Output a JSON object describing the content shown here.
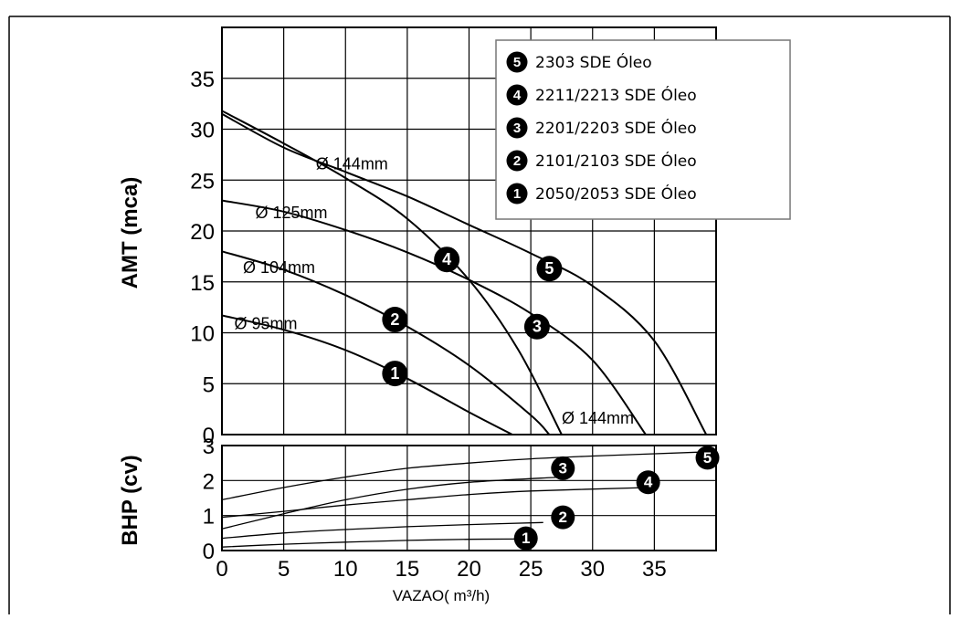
{
  "chart_data": [
    {
      "type": "line",
      "id": "head",
      "ylabel": "AMT (mca)",
      "xlim": [
        0,
        40
      ],
      "ylim": [
        0,
        40
      ],
      "yticks": [
        0,
        5,
        10,
        15,
        20,
        25,
        30,
        35
      ],
      "grid": true,
      "legend_position": "top-right",
      "legend": [
        {
          "marker": "5",
          "label": "2303 SDE Óleo"
        },
        {
          "marker": "4",
          "label": "2211/2213 SDE Óleo"
        },
        {
          "marker": "3",
          "label": "2201/2203 SDE Óleo"
        },
        {
          "marker": "2",
          "label": "2101/2103 SDE Óleo"
        },
        {
          "marker": "1",
          "label": "2050/2053 SDE Óleo"
        }
      ],
      "series": [
        {
          "marker": "1",
          "x": [
            0,
            5,
            10,
            15,
            20,
            23.5
          ],
          "y": [
            11.7,
            10.3,
            8.3,
            5.5,
            2.2,
            0
          ]
        },
        {
          "marker": "2",
          "x": [
            0,
            5,
            10,
            15,
            20,
            25,
            26.5
          ],
          "y": [
            18,
            16.2,
            13.7,
            10.6,
            6.8,
            1.9,
            0
          ]
        },
        {
          "marker": "3",
          "x": [
            0,
            5,
            10,
            15,
            20,
            25,
            30,
            34.3
          ],
          "y": [
            23,
            21.9,
            20.1,
            17.9,
            15.2,
            11.9,
            7.3,
            0
          ]
        },
        {
          "marker": "4",
          "x": [
            0,
            5,
            10,
            15,
            20,
            24,
            27.5
          ],
          "y": [
            31.8,
            28.6,
            25.2,
            21.2,
            15.2,
            8.3,
            0
          ]
        },
        {
          "marker": "5",
          "x": [
            0,
            5,
            10,
            15,
            20,
            25,
            30,
            35,
            39.2
          ],
          "y": [
            31.5,
            28.2,
            25.8,
            23.4,
            20.6,
            17.8,
            14.6,
            9.2,
            0
          ]
        }
      ],
      "marker_points": [
        {
          "marker": "1",
          "x": 14,
          "y": 6
        },
        {
          "marker": "2",
          "x": 14,
          "y": 11.3
        },
        {
          "marker": "3",
          "x": 25.5,
          "y": 10.6
        },
        {
          "marker": "4",
          "x": 18.2,
          "y": 17.2
        },
        {
          "marker": "5",
          "x": 26.5,
          "y": 16.3
        }
      ],
      "annotations": [
        {
          "text": "Ø 95mm",
          "x": 1,
          "y": 10.9
        },
        {
          "text": "Ø 104mm",
          "x": 1.7,
          "y": 16.4
        },
        {
          "text": "Ø 125mm",
          "x": 2.7,
          "y": 21.8
        },
        {
          "text": "Ø 144mm",
          "x": 7.6,
          "y": 26.6
        },
        {
          "text": "Ø 144mm",
          "x": 27.5,
          "y": 1.6
        }
      ]
    },
    {
      "type": "line",
      "id": "power",
      "ylabel": "BHP (cv)",
      "xlabel": "VAZAO( m³/h)",
      "xlim": [
        0,
        40
      ],
      "ylim": [
        0,
        3
      ],
      "xticks": [
        0,
        5,
        10,
        15,
        20,
        25,
        30,
        35
      ],
      "yticks": [
        0,
        1,
        2,
        3
      ],
      "grid": true,
      "series": [
        {
          "marker": "1",
          "x": [
            0,
            5,
            10,
            15,
            20,
            24
          ],
          "y": [
            0.1,
            0.18,
            0.24,
            0.29,
            0.32,
            0.33
          ]
        },
        {
          "marker": "2",
          "x": [
            0,
            5,
            10,
            15,
            20,
            26
          ],
          "y": [
            0.35,
            0.5,
            0.6,
            0.68,
            0.74,
            0.8
          ]
        },
        {
          "marker": "3",
          "x": [
            0,
            5,
            10,
            15,
            20,
            27.5
          ],
          "y": [
            0.62,
            1.05,
            1.45,
            1.75,
            1.95,
            2.1
          ]
        },
        {
          "marker": "4",
          "x": [
            0,
            5,
            10,
            15,
            20,
            25,
            34.5
          ],
          "y": [
            0.95,
            1.12,
            1.3,
            1.45,
            1.6,
            1.7,
            1.8
          ]
        },
        {
          "marker": "5",
          "x": [
            0,
            5,
            10,
            15,
            20,
            25,
            30,
            39.3
          ],
          "y": [
            1.45,
            1.8,
            2.1,
            2.35,
            2.5,
            2.62,
            2.7,
            2.82
          ]
        }
      ],
      "marker_points": [
        {
          "marker": "1",
          "x": 24.6,
          "y": 0.35
        },
        {
          "marker": "2",
          "x": 27.6,
          "y": 0.95
        },
        {
          "marker": "3",
          "x": 27.6,
          "y": 2.35
        },
        {
          "marker": "4",
          "x": 34.5,
          "y": 1.95
        },
        {
          "marker": "5",
          "x": 39.3,
          "y": 2.65
        }
      ]
    }
  ]
}
